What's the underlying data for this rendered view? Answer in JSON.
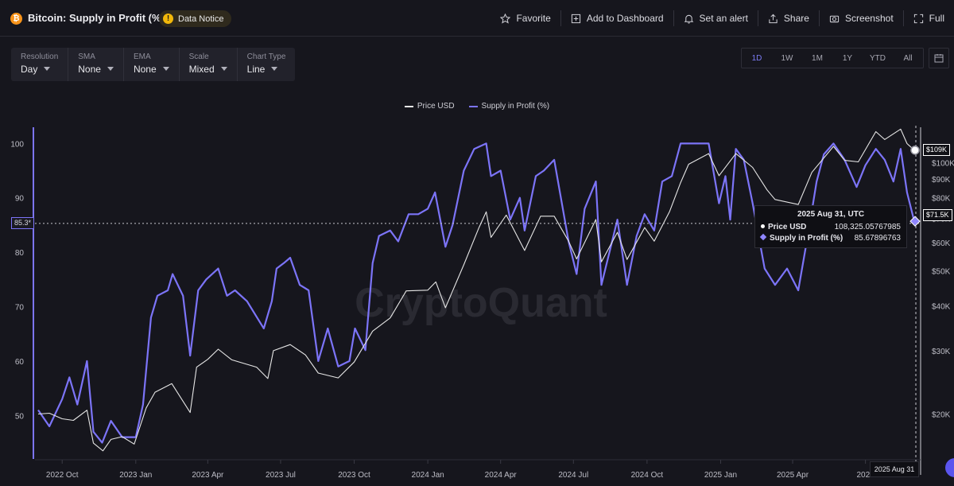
{
  "header": {
    "title": "Bitcoin: Supply in Profit (%)",
    "btc_glyph": "₿",
    "notice": "Data Notice",
    "notice_glyph": "!",
    "actions": [
      {
        "label": "Favorite",
        "icon": "star-icon"
      },
      {
        "label": "Add to Dashboard",
        "icon": "dashboard-icon"
      },
      {
        "label": "Set an alert",
        "icon": "bell-icon"
      },
      {
        "label": "Share",
        "icon": "share-icon"
      },
      {
        "label": "Screenshot",
        "icon": "camera-icon"
      },
      {
        "label": "Full",
        "icon": "fullscreen-icon"
      }
    ]
  },
  "controls": [
    {
      "label": "Resolution",
      "value": "Day"
    },
    {
      "label": "SMA",
      "value": "None"
    },
    {
      "label": "EMA",
      "value": "None"
    },
    {
      "label": "Scale",
      "value": "Mixed"
    },
    {
      "label": "Chart Type",
      "value": "Line"
    }
  ],
  "ranges": {
    "options": [
      "1D",
      "1W",
      "1M",
      "1Y",
      "YTD",
      "All"
    ],
    "active": "1D"
  },
  "colors": {
    "price": "#e6e6e6",
    "supply": "#7c74f8",
    "accent": "#7c7cf5",
    "background": "#16161d"
  },
  "watermark": "CryptoQuant",
  "tooltip": {
    "title": "2025 Aug 31, UTC",
    "price_label": "Price USD",
    "price_value": "108,325.05767985",
    "supply_label": "Supply in Profit (%)",
    "supply_value": "85.67896763"
  },
  "crosshair": {
    "x_label": "2025 Aug 31",
    "left_value_label": "85.3*",
    "left_value": 85.3,
    "price_tag": "$109K",
    "price_tag_value": 109000,
    "supply_tag": "$71.5K",
    "supply_tag_value": 71500
  },
  "chart_data": {
    "type": "line",
    "title": "Bitcoin: Supply in Profit (%)",
    "legend": [
      "Price USD",
      "Supply in Profit (%)"
    ],
    "legend_position": "top-center",
    "grid": false,
    "x_range": [
      "2022-08-28",
      "2025-08-31"
    ],
    "x_ticks": [
      {
        "date": "2022-10-01",
        "label": "2022 Oct"
      },
      {
        "date": "2023-01-01",
        "label": "2023 Jan"
      },
      {
        "date": "2023-04-01",
        "label": "2023 Apr"
      },
      {
        "date": "2023-07-01",
        "label": "2023 Jul"
      },
      {
        "date": "2023-10-01",
        "label": "2023 Oct"
      },
      {
        "date": "2024-01-01",
        "label": "2024 Jan"
      },
      {
        "date": "2024-04-01",
        "label": "2024 Apr"
      },
      {
        "date": "2024-07-01",
        "label": "2024 Jul"
      },
      {
        "date": "2024-10-01",
        "label": "2024 Oct"
      },
      {
        "date": "2025-01-01",
        "label": "2025 Jan"
      },
      {
        "date": "2025-04-01",
        "label": "2025 Apr"
      },
      {
        "date": "2025-07-01",
        "label": "2025"
      }
    ],
    "left_axis": {
      "label": "",
      "range": [
        42,
        104
      ],
      "ticks": [
        50,
        60,
        70,
        80,
        90,
        100
      ]
    },
    "right_axis": {
      "label": "",
      "scale": "log",
      "range": [
        15000,
        130000
      ],
      "ticks": [
        {
          "value": 20000,
          "label": "$20K"
        },
        {
          "value": 30000,
          "label": "$30K"
        },
        {
          "value": 40000,
          "label": "$40K"
        },
        {
          "value": 50000,
          "label": "$50K"
        },
        {
          "value": 60000,
          "label": "$60K"
        },
        {
          "value": 70000,
          "label": "$70K"
        },
        {
          "value": 80000,
          "label": "$80K"
        },
        {
          "value": 90000,
          "label": "$90K"
        },
        {
          "value": 100000,
          "label": "$100K"
        }
      ]
    },
    "series": [
      {
        "name": "Supply in Profit (%)",
        "axis": "left",
        "points": [
          [
            "2022-09-01",
            51
          ],
          [
            "2022-09-15",
            48
          ],
          [
            "2022-10-01",
            53
          ],
          [
            "2022-10-10",
            57
          ],
          [
            "2022-10-20",
            52
          ],
          [
            "2022-11-01",
            60
          ],
          [
            "2022-11-09",
            47
          ],
          [
            "2022-11-20",
            45
          ],
          [
            "2022-12-01",
            49
          ],
          [
            "2022-12-15",
            46
          ],
          [
            "2023-01-01",
            46
          ],
          [
            "2023-01-10",
            52
          ],
          [
            "2023-01-20",
            68
          ],
          [
            "2023-01-28",
            72
          ],
          [
            "2023-02-10",
            73
          ],
          [
            "2023-02-16",
            76
          ],
          [
            "2023-03-01",
            72
          ],
          [
            "2023-03-10",
            61
          ],
          [
            "2023-03-20",
            73
          ],
          [
            "2023-03-30",
            75
          ],
          [
            "2023-04-14",
            77
          ],
          [
            "2023-04-25",
            72
          ],
          [
            "2023-05-05",
            73
          ],
          [
            "2023-05-20",
            71
          ],
          [
            "2023-06-10",
            66
          ],
          [
            "2023-06-20",
            71
          ],
          [
            "2023-06-26",
            77
          ],
          [
            "2023-07-05",
            78
          ],
          [
            "2023-07-13",
            79
          ],
          [
            "2023-07-25",
            74
          ],
          [
            "2023-08-05",
            73
          ],
          [
            "2023-08-17",
            60
          ],
          [
            "2023-08-29",
            66
          ],
          [
            "2023-09-11",
            59
          ],
          [
            "2023-09-25",
            60
          ],
          [
            "2023-10-02",
            66
          ],
          [
            "2023-10-15",
            62
          ],
          [
            "2023-10-24",
            78
          ],
          [
            "2023-11-01",
            83
          ],
          [
            "2023-11-15",
            84
          ],
          [
            "2023-11-25",
            82
          ],
          [
            "2023-12-08",
            87
          ],
          [
            "2023-12-20",
            87
          ],
          [
            "2024-01-01",
            88
          ],
          [
            "2024-01-10",
            91
          ],
          [
            "2024-01-23",
            81
          ],
          [
            "2024-02-01",
            85
          ],
          [
            "2024-02-15",
            95
          ],
          [
            "2024-02-28",
            99
          ],
          [
            "2024-03-14",
            100
          ],
          [
            "2024-03-20",
            94
          ],
          [
            "2024-04-01",
            95
          ],
          [
            "2024-04-13",
            86
          ],
          [
            "2024-04-25",
            90
          ],
          [
            "2024-05-01",
            84
          ],
          [
            "2024-05-15",
            94
          ],
          [
            "2024-05-25",
            95
          ],
          [
            "2024-06-07",
            97
          ],
          [
            "2024-06-25",
            82
          ],
          [
            "2024-07-05",
            76
          ],
          [
            "2024-07-15",
            88
          ],
          [
            "2024-07-29",
            93
          ],
          [
            "2024-08-05",
            74
          ],
          [
            "2024-08-15",
            80
          ],
          [
            "2024-08-25",
            86
          ],
          [
            "2024-09-06",
            74
          ],
          [
            "2024-09-18",
            83
          ],
          [
            "2024-09-28",
            87
          ],
          [
            "2024-10-10",
            84
          ],
          [
            "2024-10-20",
            93
          ],
          [
            "2024-11-01",
            94
          ],
          [
            "2024-11-12",
            100
          ],
          [
            "2024-11-22",
            100
          ],
          [
            "2024-12-05",
            100
          ],
          [
            "2024-12-17",
            100
          ],
          [
            "2024-12-30",
            89
          ],
          [
            "2025-01-07",
            94
          ],
          [
            "2025-01-13",
            86
          ],
          [
            "2025-01-20",
            99
          ],
          [
            "2025-01-30",
            97
          ],
          [
            "2025-02-10",
            89
          ],
          [
            "2025-02-25",
            77
          ],
          [
            "2025-03-10",
            74
          ],
          [
            "2025-03-25",
            77
          ],
          [
            "2025-04-08",
            73
          ],
          [
            "2025-04-21",
            84
          ],
          [
            "2025-05-01",
            93
          ],
          [
            "2025-05-10",
            98
          ],
          [
            "2025-05-22",
            100
          ],
          [
            "2025-06-05",
            97
          ],
          [
            "2025-06-20",
            92
          ],
          [
            "2025-07-01",
            96
          ],
          [
            "2025-07-14",
            99
          ],
          [
            "2025-07-25",
            97
          ],
          [
            "2025-08-05",
            93
          ],
          [
            "2025-08-14",
            99
          ],
          [
            "2025-08-22",
            91
          ],
          [
            "2025-08-31",
            85.7
          ]
        ]
      },
      {
        "name": "Price USD",
        "axis": "right",
        "points": [
          [
            "2022-09-01",
            20000
          ],
          [
            "2022-09-15",
            20100
          ],
          [
            "2022-10-01",
            19400
          ],
          [
            "2022-10-15",
            19200
          ],
          [
            "2022-11-01",
            20500
          ],
          [
            "2022-11-09",
            16600
          ],
          [
            "2022-11-21",
            15800
          ],
          [
            "2022-12-01",
            17000
          ],
          [
            "2022-12-15",
            17300
          ],
          [
            "2022-12-30",
            16500
          ],
          [
            "2023-01-14",
            20800
          ],
          [
            "2023-01-25",
            23000
          ],
          [
            "2023-02-15",
            24300
          ],
          [
            "2023-03-10",
            20200
          ],
          [
            "2023-03-18",
            27000
          ],
          [
            "2023-04-01",
            28400
          ],
          [
            "2023-04-14",
            30300
          ],
          [
            "2023-05-01",
            28300
          ],
          [
            "2023-06-01",
            27000
          ],
          [
            "2023-06-15",
            25100
          ],
          [
            "2023-06-22",
            30000
          ],
          [
            "2023-07-13",
            31200
          ],
          [
            "2023-08-01",
            29200
          ],
          [
            "2023-08-17",
            26000
          ],
          [
            "2023-09-11",
            25200
          ],
          [
            "2023-10-01",
            27900
          ],
          [
            "2023-10-24",
            34000
          ],
          [
            "2023-11-15",
            37000
          ],
          [
            "2023-12-05",
            44000
          ],
          [
            "2024-01-01",
            44200
          ],
          [
            "2024-01-11",
            46600
          ],
          [
            "2024-01-23",
            39500
          ],
          [
            "2024-02-15",
            52000
          ],
          [
            "2024-03-05",
            66000
          ],
          [
            "2024-03-14",
            73000
          ],
          [
            "2024-03-20",
            62000
          ],
          [
            "2024-04-08",
            71500
          ],
          [
            "2024-05-01",
            57000
          ],
          [
            "2024-05-21",
            71000
          ],
          [
            "2024-06-07",
            71000
          ],
          [
            "2024-06-25",
            60500
          ],
          [
            "2024-07-05",
            54000
          ],
          [
            "2024-07-29",
            69500
          ],
          [
            "2024-08-05",
            53000
          ],
          [
            "2024-08-25",
            64000
          ],
          [
            "2024-09-06",
            53800
          ],
          [
            "2024-09-28",
            66000
          ],
          [
            "2024-10-10",
            60500
          ],
          [
            "2024-10-29",
            73000
          ],
          [
            "2024-11-12",
            88000
          ],
          [
            "2024-11-22",
            99000
          ],
          [
            "2024-12-17",
            106000
          ],
          [
            "2024-12-30",
            92000
          ],
          [
            "2025-01-20",
            106000
          ],
          [
            "2025-02-10",
            97000
          ],
          [
            "2025-02-28",
            84000
          ],
          [
            "2025-03-10",
            79000
          ],
          [
            "2025-04-08",
            76500
          ],
          [
            "2025-04-25",
            94000
          ],
          [
            "2025-05-22",
            111000
          ],
          [
            "2025-06-05",
            101500
          ],
          [
            "2025-06-22",
            100500
          ],
          [
            "2025-07-14",
            122000
          ],
          [
            "2025-07-25",
            116000
          ],
          [
            "2025-08-14",
            124000
          ],
          [
            "2025-08-22",
            113000
          ],
          [
            "2025-08-31",
            108325
          ]
        ]
      }
    ]
  }
}
